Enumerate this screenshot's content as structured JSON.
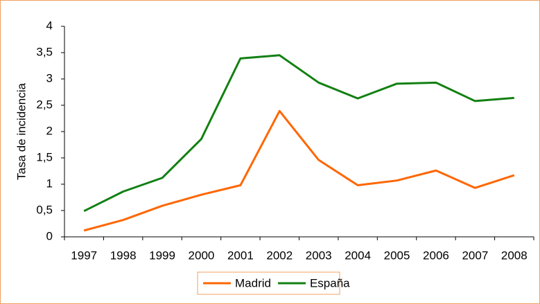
{
  "chart_data": {
    "type": "line",
    "ylabel": "Tasa de incidencia",
    "categories": [
      "1997",
      "1998",
      "1999",
      "2000",
      "2001",
      "2002",
      "2003",
      "2004",
      "2005",
      "2006",
      "2007",
      "2008"
    ],
    "series": [
      {
        "name": "Madrid",
        "color": "#ff6600",
        "values": [
          0.12,
          0.32,
          0.59,
          0.8,
          0.98,
          2.39,
          1.46,
          0.98,
          1.07,
          1.26,
          0.93,
          1.17
        ]
      },
      {
        "name": "España",
        "color": "#128012",
        "values": [
          0.49,
          0.86,
          1.12,
          1.86,
          3.39,
          3.45,
          2.93,
          2.63,
          2.91,
          2.93,
          2.58,
          2.64
        ]
      }
    ],
    "ylim": [
      0,
      4
    ],
    "yticks": [
      0,
      {
        "value": 0.5,
        "label": "0,5"
      },
      1,
      {
        "value": 1.5,
        "label": "1,5"
      },
      2,
      {
        "value": 2.5,
        "label": "2,5"
      },
      3,
      {
        "value": 3.5,
        "label": "3,5"
      },
      4
    ],
    "legend": "bottom"
  }
}
